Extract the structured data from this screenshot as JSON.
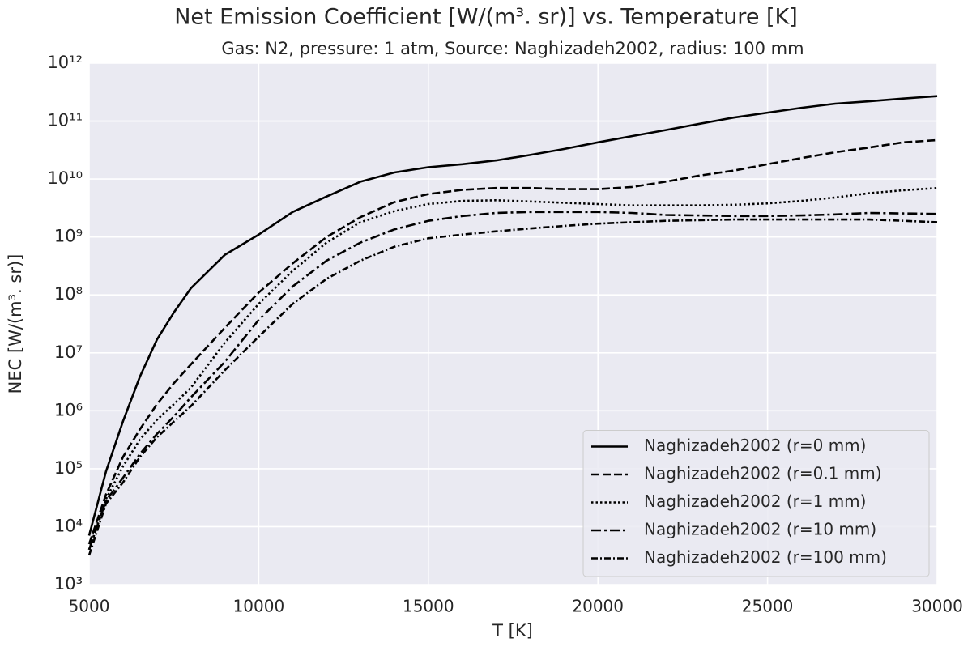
{
  "chart_data": {
    "type": "line",
    "title": "Net Emission Coefficient [W/(m³. sr)] vs. Temperature [K]",
    "subtitle": "Gas: N2, pressure: 1 atm, Source: Naghizadeh2002, radius: 100 mm",
    "x_label": "T [K]",
    "y_label": "NEC [W/(m³. sr)]",
    "y_scale": "log",
    "grid": true,
    "legend_position": "lower right",
    "xlim": [
      5000,
      30000
    ],
    "xticks": [
      5000,
      10000,
      15000,
      20000,
      25000,
      30000
    ],
    "ylim": [
      1000,
      1000000000000
    ],
    "yticks": [
      {
        "value": 1000,
        "label": "10³"
      },
      {
        "value": 10000,
        "label": "10⁴"
      },
      {
        "value": 100000,
        "label": "10⁵"
      },
      {
        "value": 1000000,
        "label": "10⁶"
      },
      {
        "value": 10000000,
        "label": "10⁷"
      },
      {
        "value": 100000000,
        "label": "10⁸"
      },
      {
        "value": 1000000000,
        "label": "10⁹"
      },
      {
        "value": 10000000000,
        "label": "10¹⁰"
      },
      {
        "value": 100000000000,
        "label": "10¹¹"
      },
      {
        "value": 1000000000000,
        "label": "10¹²"
      }
    ],
    "x": [
      5000,
      5500,
      6000,
      6500,
      7000,
      7500,
      8000,
      9000,
      10000,
      11000,
      12000,
      13000,
      14000,
      15000,
      16000,
      17000,
      18000,
      19000,
      20000,
      21000,
      22000,
      23000,
      24000,
      25000,
      26000,
      27000,
      28000,
      29000,
      30000
    ],
    "series": [
      {
        "name": "Naghizadeh2002 (r=0 mm)",
        "color": "#000000",
        "linestyle": "solid",
        "values": [
          7000,
          90000,
          660000,
          3900000,
          17000000,
          50000000,
          130000000,
          490000000,
          1100000000,
          2700000000,
          5000000000,
          9000000000,
          13000000000,
          16000000000,
          18000000000,
          21000000000,
          26000000000,
          33000000000,
          43000000000,
          55000000000,
          70000000000,
          90000000000,
          115000000000,
          140000000000,
          170000000000,
          200000000000,
          220000000000,
          245000000000,
          270000000000
        ]
      },
      {
        "name": "Naghizadeh2002 (r=0.1 mm)",
        "color": "#000000",
        "linestyle": "dashed",
        "values": [
          5000,
          36000,
          160000,
          480000,
          1300000,
          3000000,
          6300000,
          27000000,
          110000000,
          350000000,
          1000000000,
          2200000000,
          4000000000,
          5500000000,
          6500000000,
          7000000000,
          7000000000,
          6700000000,
          6700000000,
          7300000000,
          9000000000,
          11500000000,
          14000000000,
          18000000000,
          23000000000,
          29000000000,
          35000000000,
          43000000000,
          47000000000
        ]
      },
      {
        "name": "Naghizadeh2002 (r=1 mm)",
        "color": "#000000",
        "linestyle": "dotted",
        "values": [
          4000,
          30000,
          110000,
          320000,
          700000,
          1300000,
          2500000,
          15000000,
          70000000,
          260000000,
          800000000,
          1800000000,
          2800000000,
          3700000000,
          4200000000,
          4300000000,
          4100000000,
          3900000000,
          3700000000,
          3500000000,
          3500000000,
          3500000000,
          3600000000,
          3800000000,
          4200000000,
          4800000000,
          5700000000,
          6400000000,
          7000000000
        ]
      },
      {
        "name": "Naghizadeh2002 (r=10 mm)",
        "color": "#000000",
        "linestyle": "dashdot",
        "values": [
          4000,
          28000,
          70000,
          180000,
          400000,
          800000,
          1700000,
          7000000,
          37000000,
          140000000,
          390000000,
          800000000,
          1350000000,
          1900000000,
          2300000000,
          2600000000,
          2700000000,
          2700000000,
          2700000000,
          2600000000,
          2400000000,
          2350000000,
          2300000000,
          2300000000,
          2350000000,
          2450000000,
          2600000000,
          2550000000,
          2500000000
        ]
      },
      {
        "name": "Naghizadeh2002 (r=100 mm)",
        "color": "#000000",
        "linestyle": "densedashdot",
        "values": [
          3200,
          25000,
          58000,
          160000,
          350000,
          650000,
          1200000,
          5000000,
          19000000,
          70000000,
          190000000,
          390000000,
          680000000,
          950000000,
          1100000000,
          1250000000,
          1400000000,
          1550000000,
          1700000000,
          1800000000,
          1900000000,
          1950000000,
          2000000000,
          2000000000,
          2000000000,
          2000000000,
          2000000000,
          1900000000,
          1800000000
        ]
      }
    ]
  }
}
